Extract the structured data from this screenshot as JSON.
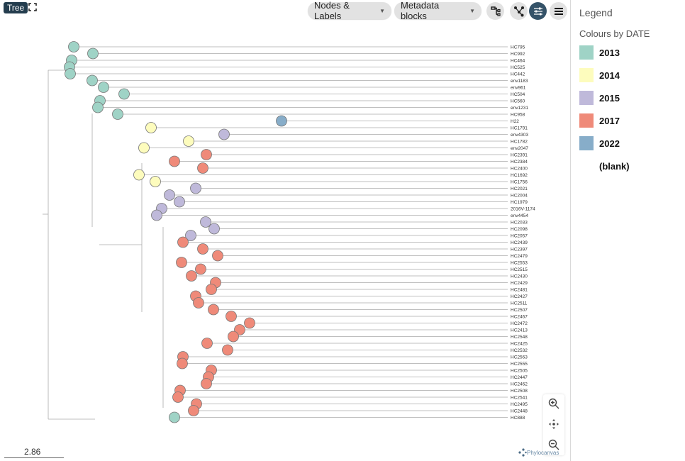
{
  "toolbar": {
    "mode_badge": "Tree",
    "nodes_labels": "Nodes & Labels",
    "metadata_blocks": "Metadata blocks"
  },
  "legend": {
    "title": "Legend",
    "subtitle": "Colours by DATE",
    "items": [
      {
        "label": "2013",
        "color": "#9fd3c6"
      },
      {
        "label": "2014",
        "color": "#fdfcbd"
      },
      {
        "label": "2015",
        "color": "#bfb9da"
      },
      {
        "label": "2017",
        "color": "#ef8a79"
      },
      {
        "label": "2022",
        "color": "#87adc9"
      },
      {
        "label": "(blank)",
        "color": ""
      }
    ]
  },
  "tree": {
    "leaves": [
      {
        "label": "HC795",
        "year": "2013"
      },
      {
        "label": "HC992",
        "year": "2013"
      },
      {
        "label": "HC464",
        "year": "2013"
      },
      {
        "label": "HC525",
        "year": "2013"
      },
      {
        "label": "HC442",
        "year": "2013"
      },
      {
        "label": "env1183",
        "year": "2013"
      },
      {
        "label": "env961",
        "year": "2013"
      },
      {
        "label": "HC504",
        "year": "2013"
      },
      {
        "label": "HC560",
        "year": "2013"
      },
      {
        "label": "env1231",
        "year": "2013"
      },
      {
        "label": "HC958",
        "year": "2013"
      },
      {
        "label": "H22",
        "year": "2022"
      },
      {
        "label": "HC1791",
        "year": "2014"
      },
      {
        "label": "env4303",
        "year": "2015"
      },
      {
        "label": "HC1782",
        "year": "2014"
      },
      {
        "label": "env2047",
        "year": "2014"
      },
      {
        "label": "HC2391",
        "year": "2017"
      },
      {
        "label": "HC2384",
        "year": "2017"
      },
      {
        "label": "HC2400",
        "year": "2017"
      },
      {
        "label": "HC1692",
        "year": "2014"
      },
      {
        "label": "HC1756",
        "year": "2014"
      },
      {
        "label": "HC2021",
        "year": "2015"
      },
      {
        "label": "HC2004",
        "year": "2015"
      },
      {
        "label": "HC1979",
        "year": "2015"
      },
      {
        "label": "2016V-1174",
        "year": "2015"
      },
      {
        "label": "env4454",
        "year": "2015"
      },
      {
        "label": "HC2033",
        "year": "2015"
      },
      {
        "label": "HC2098",
        "year": "2015"
      },
      {
        "label": "HC2057",
        "year": "2015"
      },
      {
        "label": "HC2439",
        "year": "2017"
      },
      {
        "label": "HC2397",
        "year": "2017"
      },
      {
        "label": "HC2479",
        "year": "2017"
      },
      {
        "label": "HC2553",
        "year": "2017"
      },
      {
        "label": "HC2515",
        "year": "2017"
      },
      {
        "label": "HC2430",
        "year": "2017"
      },
      {
        "label": "HC2429",
        "year": "2017"
      },
      {
        "label": "HC2481",
        "year": "2017"
      },
      {
        "label": "HC2427",
        "year": "2017"
      },
      {
        "label": "HC2511",
        "year": "2017"
      },
      {
        "label": "HC2507",
        "year": "2017"
      },
      {
        "label": "HC2467",
        "year": "2017"
      },
      {
        "label": "HC2472",
        "year": "2017"
      },
      {
        "label": "HC2413",
        "year": "2017"
      },
      {
        "label": "HC2548",
        "year": "2017"
      },
      {
        "label": "HC2425",
        "year": "2017"
      },
      {
        "label": "HC2532",
        "year": "2017"
      },
      {
        "label": "HC2563",
        "year": "2017"
      },
      {
        "label": "HC2555",
        "year": "2017"
      },
      {
        "label": "HC2505",
        "year": "2017"
      },
      {
        "label": "HC2447",
        "year": "2017"
      },
      {
        "label": "HC2462",
        "year": "2017"
      },
      {
        "label": "HC2508",
        "year": "2017"
      },
      {
        "label": "HC2541",
        "year": "2017"
      },
      {
        "label": "HC2495",
        "year": "2017"
      },
      {
        "label": "HC2448",
        "year": "2017"
      },
      {
        "label": "HC888",
        "year": "2013"
      }
    ],
    "scale_label": "2.86"
  },
  "branding": "Phylocanvas"
}
